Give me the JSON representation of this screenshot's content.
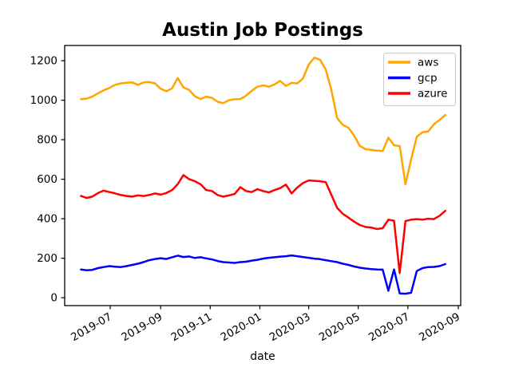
{
  "chart_data": {
    "type": "line",
    "title": "Austin Job Postings",
    "xlabel": "date",
    "ylabel": "",
    "x_is_week_index": true,
    "x_tick_labels": [
      "2019-07",
      "2019-09",
      "2019-11",
      "2020-01",
      "2020-03",
      "2020-05",
      "2020-07",
      "2020-09"
    ],
    "x_tick_positions": [
      5.14,
      14.0,
      22.71,
      31.43,
      40.0,
      48.71,
      57.43,
      66.29
    ],
    "y_tick_labels": [
      "0",
      "200",
      "400",
      "600",
      "800",
      "1000",
      "1200"
    ],
    "y_tick_values": [
      0,
      200,
      400,
      600,
      800,
      1000,
      1200
    ],
    "xlim": [
      -2.86,
      66.71
    ],
    "ylim": [
      -40,
      1277
    ],
    "grid": false,
    "legend_position": "upper right",
    "legend_entries": [
      "aws",
      "gcp",
      "azure"
    ],
    "series": [
      {
        "name": "aws",
        "color": "#ffa500",
        "values": [
          1005,
          1008,
          1018,
          1035,
          1050,
          1062,
          1078,
          1085,
          1088,
          1090,
          1078,
          1090,
          1092,
          1085,
          1058,
          1045,
          1060,
          1112,
          1065,
          1052,
          1020,
          1006,
          1018,
          1012,
          992,
          985,
          1000,
          1005,
          1006,
          1022,
          1048,
          1068,
          1075,
          1068,
          1080,
          1098,
          1072,
          1088,
          1085,
          1110,
          1180,
          1215,
          1205,
          1155,
          1050,
          910,
          875,
          860,
          820,
          768,
          752,
          748,
          745,
          743,
          810,
          772,
          768,
          575,
          700,
          815,
          838,
          842,
          878,
          900,
          925
        ]
      },
      {
        "name": "gcp",
        "color": "#0000ff",
        "values": [
          143,
          139,
          141,
          150,
          155,
          160,
          157,
          155,
          160,
          166,
          172,
          180,
          190,
          196,
          200,
          196,
          205,
          213,
          206,
          209,
          201,
          205,
          199,
          194,
          186,
          180,
          178,
          176,
          180,
          182,
          188,
          192,
          198,
          202,
          205,
          208,
          210,
          214,
          210,
          206,
          202,
          198,
          195,
          190,
          185,
          180,
          172,
          166,
          158,
          152,
          148,
          145,
          143,
          142,
          35,
          143,
          22,
          20,
          25,
          135,
          150,
          155,
          156,
          160,
          170
        ]
      },
      {
        "name": "azure",
        "color": "#ff0000",
        "values": [
          515,
          505,
          512,
          530,
          542,
          535,
          528,
          520,
          515,
          512,
          518,
          515,
          520,
          528,
          522,
          530,
          545,
          575,
          621,
          600,
          590,
          575,
          545,
          540,
          520,
          512,
          518,
          525,
          560,
          540,
          535,
          550,
          540,
          533,
          545,
          555,
          573,
          528,
          558,
          580,
          594,
          592,
          590,
          585,
          520,
          455,
          425,
          405,
          385,
          368,
          358,
          355,
          348,
          352,
          395,
          390,
          125,
          388,
          395,
          398,
          395,
          400,
          398,
          415,
          440
        ]
      }
    ],
    "colors": {
      "title": "#000000",
      "xlabel": "#8b0000",
      "tick_labels": "#000000",
      "spine": "#000000",
      "legend_border": "#cccccc",
      "background": "#ffffff"
    },
    "line_width": 2.5
  }
}
